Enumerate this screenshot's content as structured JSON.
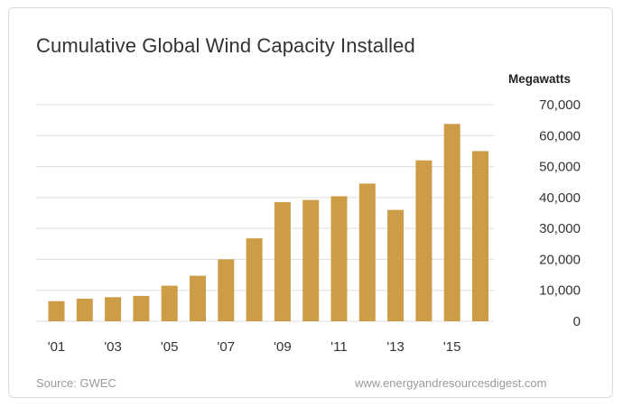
{
  "chart_data": {
    "type": "bar",
    "title": "Cumulative Global Wind Capacity Installed",
    "unit_label": "Megawatts",
    "categories": [
      "2001",
      "2002",
      "2003",
      "2004",
      "2005",
      "2006",
      "2007",
      "2008",
      "2009",
      "2010",
      "2011",
      "2012",
      "2013",
      "2014",
      "2015",
      "2016"
    ],
    "x_tick_labels": [
      "'01",
      "",
      "'03",
      "",
      "'05",
      "",
      "'07",
      "",
      "'09",
      "",
      "'11",
      "",
      "'13",
      "",
      "'15",
      ""
    ],
    "values": [
      6500,
      7300,
      7800,
      8200,
      11500,
      14700,
      20000,
      26800,
      38500,
      39200,
      40400,
      44500,
      36000,
      52000,
      63800,
      55000
    ],
    "ylim": [
      0,
      70000
    ],
    "y_ticks": [
      "0",
      "10,000",
      "20,000",
      "30,000",
      "40,000",
      "50,000",
      "60,000",
      "70,000"
    ],
    "y_tick_values": [
      0,
      10000,
      20000,
      30000,
      40000,
      50000,
      60000,
      70000
    ],
    "y_axis_side": "right",
    "grid": true,
    "colors": {
      "bar": "#cd9c47",
      "grid": "#dddddd",
      "text": "#333333"
    }
  },
  "footer": {
    "source": "Source: GWEC",
    "website": "www.energyandresourcesdigest.com"
  }
}
